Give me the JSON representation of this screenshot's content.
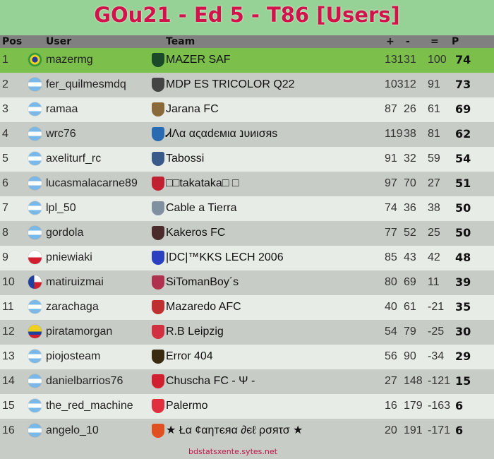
{
  "title": "GOu21 - Ed 5 - T86 [Users]",
  "headers": {
    "pos": "Pos",
    "user": "User",
    "team": "Team",
    "plus": "+",
    "minus": "-",
    "diff": "=",
    "pts": "P"
  },
  "rows": [
    {
      "pos": "1",
      "flag": "brazil",
      "user": "mazermg",
      "team": "MAZER SAF",
      "crest": "#1a4a2a",
      "plus": "131",
      "minus": "31",
      "diff": "100",
      "pts": "74"
    },
    {
      "pos": "2",
      "flag": "argentina",
      "user": "fer_quilmesmdq",
      "team": "MDP ES TRICOLOR Q22",
      "crest": "#444444",
      "plus": "103",
      "minus": "12",
      "diff": "91",
      "pts": "73"
    },
    {
      "pos": "3",
      "flag": "argentina",
      "user": "ramaa",
      "team": "Jarana FC",
      "crest": "#8a6a3a",
      "plus": "87",
      "minus": "26",
      "diff": "61",
      "pts": "69"
    },
    {
      "pos": "4",
      "flag": "argentina",
      "user": "wrc76",
      "team": "ᏗΛα αςαԁємια נυиισяѕ",
      "crest": "#2a6ab0",
      "plus": "119",
      "minus": "38",
      "diff": "81",
      "pts": "62"
    },
    {
      "pos": "5",
      "flag": "argentina",
      "user": "axeliturf_rc",
      "team": "Tabossi",
      "crest": "#3a5a8a",
      "plus": "91",
      "minus": "32",
      "diff": "59",
      "pts": "54"
    },
    {
      "pos": "6",
      "flag": "argentina",
      "user": "lucasmalacarne89",
      "team": "□□takataka□ □",
      "crest": "#c02030",
      "plus": "97",
      "minus": "70",
      "diff": "27",
      "pts": "51"
    },
    {
      "pos": "7",
      "flag": "argentina",
      "user": "lpl_50",
      "team": "Cable a Tierra",
      "crest": "#8090a0",
      "plus": "74",
      "minus": "36",
      "diff": "38",
      "pts": "50"
    },
    {
      "pos": "8",
      "flag": "argentina",
      "user": "gordola",
      "team": "Kakeros FC",
      "crest": "#4a2a2a",
      "plus": "77",
      "minus": "52",
      "diff": "25",
      "pts": "50"
    },
    {
      "pos": "9",
      "flag": "poland",
      "user": "pniewiaki",
      "team": "|DC|™KKS LECH 2006",
      "crest": "#2a40c0",
      "plus": "85",
      "minus": "43",
      "diff": "42",
      "pts": "48"
    },
    {
      "pos": "10",
      "flag": "chile",
      "user": "matiruizmai",
      "team": "SiTomanBoy´s",
      "crest": "#b03050",
      "plus": "80",
      "minus": "69",
      "diff": "11",
      "pts": "39"
    },
    {
      "pos": "11",
      "flag": "argentina",
      "user": "zarachaga",
      "team": "Mazaredo AFC",
      "crest": "#c03030",
      "plus": "40",
      "minus": "61",
      "diff": "-21",
      "pts": "35"
    },
    {
      "pos": "12",
      "flag": "colombia",
      "user": "piratamorgan",
      "team": "R.B Leipzig",
      "crest": "#d03040",
      "plus": "54",
      "minus": "79",
      "diff": "-25",
      "pts": "30"
    },
    {
      "pos": "13",
      "flag": "argentina",
      "user": "piojosteam",
      "team": "Error 404",
      "crest": "#3a2a10",
      "plus": "56",
      "minus": "90",
      "diff": "-34",
      "pts": "29"
    },
    {
      "pos": "14",
      "flag": "argentina",
      "user": "danielbarrios76",
      "team": "Chuscha FC - Ψ -",
      "crest": "#d02030",
      "plus": "27",
      "minus": "148",
      "diff": "-121",
      "pts": "15"
    },
    {
      "pos": "15",
      "flag": "argentina",
      "user": "the_red_machine",
      "team": "Palermo",
      "crest": "#e03040",
      "plus": "16",
      "minus": "179",
      "diff": "-163",
      "pts": "6"
    },
    {
      "pos": "16",
      "flag": "argentina",
      "user": "angelo_10",
      "team": "★ Łα ¢αηтєяα ∂єℓ ρσяτσ ★",
      "crest": "#e05020",
      "plus": "20",
      "minus": "191",
      "diff": "-171",
      "pts": "6"
    }
  ],
  "footer": "bdstatsxente.sytes.net"
}
